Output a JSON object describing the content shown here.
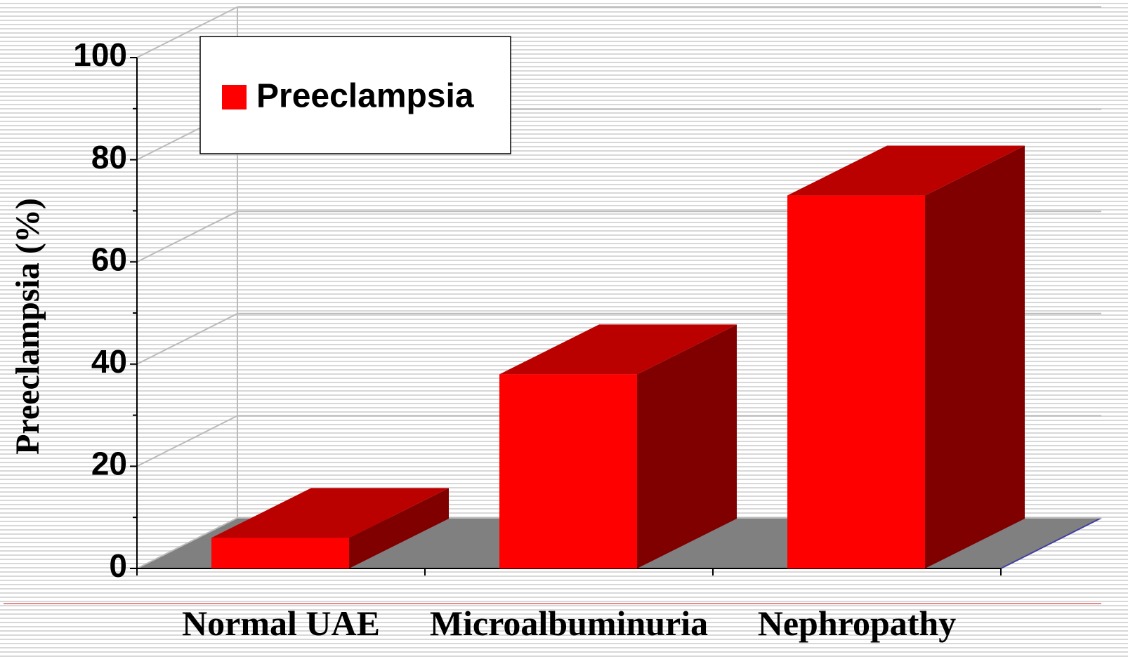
{
  "chart_data": {
    "type": "bar3d",
    "categories": [
      "Normal UAE",
      "Microalbuminuria",
      "Nephropathy"
    ],
    "series": [
      {
        "name": "Preeclampsia",
        "color": "#ff0000",
        "values": [
          6,
          38,
          73
        ]
      }
    ],
    "y_label": "Preeclampsia (%)",
    "ylim": [
      0,
      100
    ],
    "yticks": [
      0,
      20,
      40,
      60,
      80,
      100
    ],
    "grid": true,
    "legend": "top-left"
  }
}
